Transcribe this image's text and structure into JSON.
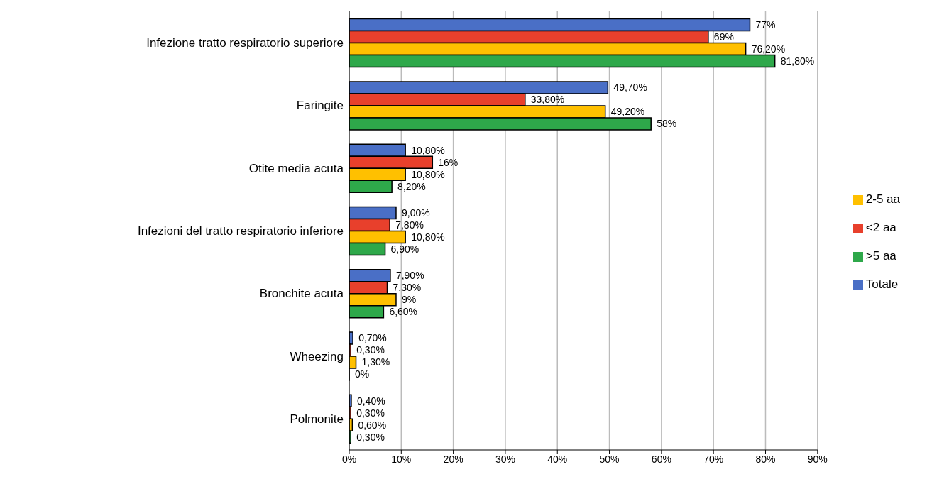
{
  "chart_data": {
    "type": "bar",
    "orientation": "horizontal",
    "categories": [
      "Infezione tratto respiratorio superiore",
      "Faringite",
      "Otite media acuta",
      "Infezioni del tratto respiratorio inferiore",
      "Bronchite acuta",
      "Wheezing",
      "Polmonite"
    ],
    "series": [
      {
        "name": "Totale",
        "color": "#4a6fc6",
        "values": [
          77,
          49.7,
          10.8,
          9.0,
          7.9,
          0.7,
          0.4
        ],
        "value_labels": [
          "77%",
          "49,70%",
          "10,80%",
          "9,00%",
          "7,90%",
          "0,70%",
          "0,40%"
        ]
      },
      {
        "name": "<2 aa",
        "color": "#e8402c",
        "values": [
          69,
          33.8,
          16,
          7.8,
          7.3,
          0.3,
          0.3
        ],
        "value_labels": [
          "69%",
          "33,80%",
          "16%",
          "7,80%",
          "7,30%",
          "0,30%",
          "0,30%"
        ]
      },
      {
        "name": "2-5 aa",
        "color": "#ffc000",
        "values": [
          76.2,
          49.2,
          10.8,
          10.8,
          9,
          1.3,
          0.6
        ],
        "value_labels": [
          "76,20%",
          "49,20%",
          "10,80%",
          "10,80%",
          "9%",
          "1,30%",
          "0,60%"
        ]
      },
      {
        "name": ">5 aa",
        "color": "#2ea84a",
        "values": [
          81.8,
          58,
          8.2,
          6.9,
          6.6,
          0,
          0.3
        ],
        "value_labels": [
          "81,80%",
          "58%",
          "8,20%",
          "6,90%",
          "6,60%",
          "0%",
          "0,30%"
        ]
      }
    ],
    "xlim": [
      0,
      90
    ],
    "xticks": [
      {
        "value": 0,
        "label": "0%"
      },
      {
        "value": 10,
        "label": "10%"
      },
      {
        "value": 20,
        "label": "20%"
      },
      {
        "value": 30,
        "label": "30%"
      },
      {
        "value": 40,
        "label": "40%"
      },
      {
        "value": 50,
        "label": "50%"
      },
      {
        "value": 60,
        "label": "60%"
      },
      {
        "value": 70,
        "label": "70%"
      },
      {
        "value": 80,
        "label": "80%"
      },
      {
        "value": 90,
        "label": "90%"
      }
    ],
    "grid": "x",
    "legend": "right"
  }
}
